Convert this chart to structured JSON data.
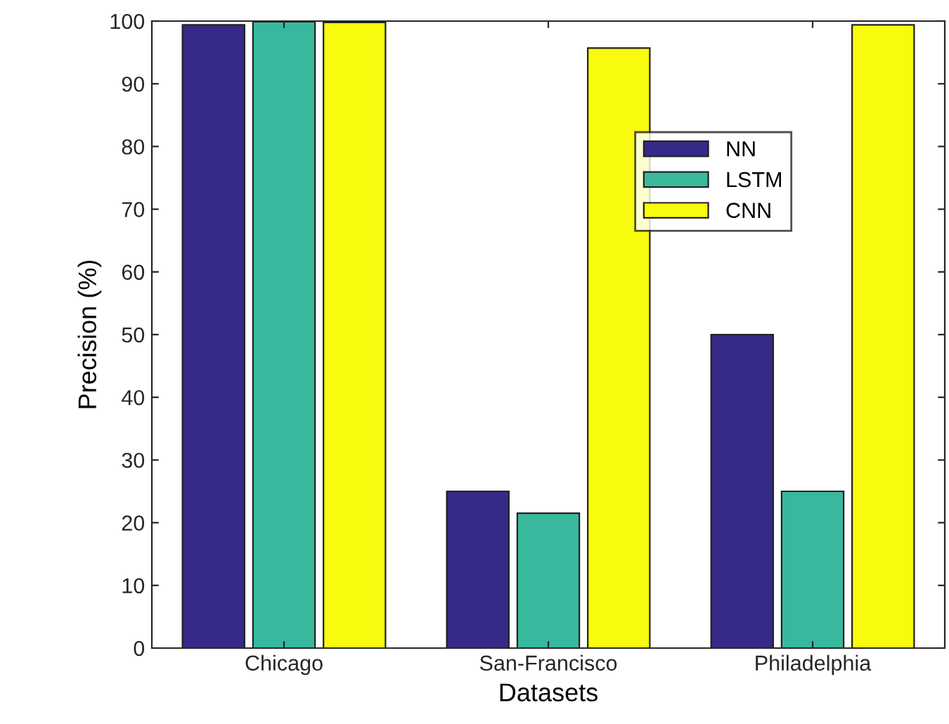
{
  "chart_data": {
    "type": "bar",
    "xlabel": "Datasets",
    "ylabel": "Precision (%)",
    "categories": [
      "Chicago",
      "San-Francisco",
      "Philadelphia"
    ],
    "series": [
      {
        "name": "NN",
        "color": "#352a87",
        "values": [
          99.4,
          25,
          50
        ]
      },
      {
        "name": "LSTM",
        "color": "#38b99e",
        "values": [
          99.9,
          21.5,
          25
        ]
      },
      {
        "name": "CNN",
        "color": "#f9fb0e",
        "values": [
          99.8,
          95.7,
          99.4
        ]
      }
    ],
    "ylim": [
      0,
      100
    ],
    "yticks": [
      0,
      10,
      20,
      30,
      40,
      50,
      60,
      70,
      80,
      90,
      100
    ],
    "grid": false,
    "legend": "top right"
  }
}
